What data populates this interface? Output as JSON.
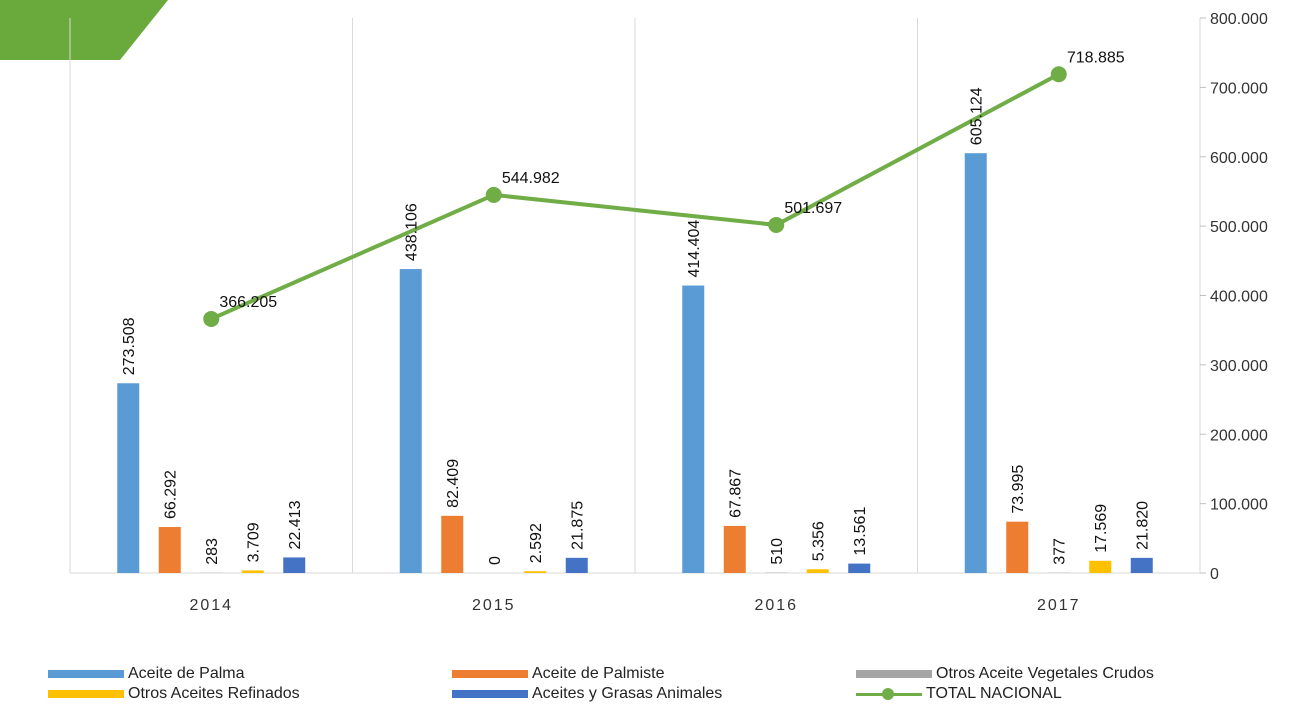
{
  "chart_data": {
    "type": "bar",
    "categories": [
      "2014",
      "2015",
      "2016",
      "2017"
    ],
    "series": [
      {
        "name": "Aceite de Palma",
        "color": "#5b9bd5",
        "values": [
          273508,
          438106,
          414404,
          605124
        ],
        "labels": [
          "273.508",
          "438.106",
          "414.404",
          "605.124"
        ]
      },
      {
        "name": "Aceite de Palmiste",
        "color": "#ed7d31",
        "values": [
          66292,
          82409,
          67867,
          73995
        ],
        "labels": [
          "66.292",
          "82.409",
          "67.867",
          "73.995"
        ]
      },
      {
        "name": "Otros Aceite Vegetales Crudos",
        "color": "#a5a5a5",
        "values": [
          283,
          0,
          510,
          377
        ],
        "labels": [
          "283",
          "0",
          "510",
          "377"
        ]
      },
      {
        "name": "Otros Aceites Refinados",
        "color": "#ffc000",
        "values": [
          3709,
          2592,
          5356,
          17569
        ],
        "labels": [
          "3.709",
          "2.592",
          "5.356",
          "17.569"
        ]
      },
      {
        "name": "Aceites y Grasas Animales",
        "color": "#4472c4",
        "values": [
          22413,
          21875,
          13561,
          21820
        ],
        "labels": [
          "22.413",
          "21.875",
          "13.561",
          "21.820"
        ]
      }
    ],
    "line_series": {
      "name": "TOTAL NACIONAL",
      "color": "#70ad47",
      "values": [
        366205,
        544982,
        501697,
        718885
      ],
      "labels": [
        "366.205",
        "544.982",
        "501.697",
        "718.885"
      ]
    },
    "ylim": [
      0,
      800000
    ],
    "yticks": [
      0,
      100000,
      200000,
      300000,
      400000,
      500000,
      600000,
      700000,
      800000
    ],
    "ytick_labels": [
      "0",
      "100.000",
      "200.000",
      "300.000",
      "400.000",
      "500.000",
      "600.000",
      "700.000",
      "800.000"
    ],
    "y_axis_side": "right",
    "grid": "vertical category separators",
    "legend_position": "bottom",
    "corner_accent_color": "#6aaa3c"
  }
}
